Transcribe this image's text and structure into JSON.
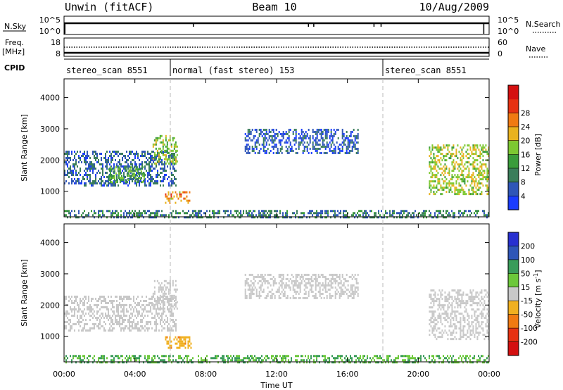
{
  "header": {
    "station": "Unwin (fitACF)",
    "beam": "Beam 10",
    "date": "10/Aug/2009"
  },
  "nsky_panel": {
    "left_label": "N.Sky",
    "left_ticks": [
      "10^5",
      "10^0"
    ],
    "right_ticks": [
      "10^5",
      "10^0"
    ],
    "right_label": "N.Search"
  },
  "freq_panel": {
    "label_line1": "Freq.",
    "label_line2": "[MHz]",
    "left_ticks": [
      "18",
      "8"
    ],
    "right_ticks": [
      "60",
      "0"
    ],
    "right_label": "Nave"
  },
  "cpid": {
    "label": "CPID",
    "segments": [
      {
        "name": "stereo_scan 8551",
        "start_hr": 0,
        "end_hr": 6
      },
      {
        "name": "normal (fast stereo) 153",
        "start_hr": 6,
        "end_hr": 18
      },
      {
        "name": "stereo_scan 8551",
        "start_hr": 18,
        "end_hr": 24
      }
    ]
  },
  "chart_data": [
    {
      "type": "heatmap",
      "panel": "power",
      "ylabel": "Slant Range [km]",
      "ylim": [
        180,
        4600
      ],
      "yticks": [
        "1000",
        "2000",
        "3000",
        "4000"
      ],
      "xlim": [
        0,
        24
      ],
      "colorbar": {
        "title": "Power [dB]",
        "range": [
          0,
          30
        ],
        "ticks": [
          "4",
          "8",
          "12",
          "16",
          "20",
          "24",
          "28"
        ],
        "colors": [
          "#1a3cff",
          "#2f56b8",
          "#3a7d5a",
          "#3a9c3a",
          "#7dc832",
          "#e8b21e",
          "#f07a12",
          "#e63212",
          "#d41010"
        ]
      },
      "echo_regions": [
        {
          "t": [
            0.0,
            6.3
          ],
          "range_km": [
            1200,
            2300
          ],
          "power_db": 6
        },
        {
          "t": [
            2.5,
            4.5
          ],
          "range_km": [
            1300,
            1800
          ],
          "power_db": 12
        },
        {
          "t": [
            5.0,
            6.4
          ],
          "range_km": [
            1900,
            2800
          ],
          "power_db": 14
        },
        {
          "t": [
            5.7,
            7.2
          ],
          "range_km": [
            650,
            1000
          ],
          "power_db": 20
        },
        {
          "t": [
            10.2,
            16.6
          ],
          "range_km": [
            2200,
            3000
          ],
          "power_db": 5
        },
        {
          "t": [
            20.6,
            24.0
          ],
          "range_km": [
            900,
            2500
          ],
          "power_db": 16
        },
        {
          "t": [
            0.0,
            24.0
          ],
          "range_km": [
            180,
            400
          ],
          "power_db": 8
        }
      ]
    },
    {
      "type": "heatmap",
      "panel": "velocity",
      "ylabel": "Slant Range [km]",
      "ylim": [
        180,
        4600
      ],
      "yticks": [
        "1000",
        "2000",
        "3000",
        "4000"
      ],
      "xlim": [
        0,
        24
      ],
      "colorbar": {
        "title": "Velocity [m s",
        "title_sup": "-1",
        "title_end": "]",
        "ticks": [
          "200",
          "100",
          "50",
          "15",
          "-15",
          "-50",
          "-100",
          "-200"
        ],
        "colors": [
          "#2830d0",
          "#2f56b8",
          "#3a9c5a",
          "#6cc83a",
          "#c8c8c8",
          "#f0b020",
          "#f07a12",
          "#e63212",
          "#d41010"
        ]
      },
      "echo_regions": [
        {
          "t": [
            0.0,
            6.3
          ],
          "range_km": [
            1200,
            2300
          ],
          "velocity": 0
        },
        {
          "t": [
            5.0,
            6.4
          ],
          "range_km": [
            1900,
            2800
          ],
          "velocity": 0
        },
        {
          "t": [
            5.7,
            7.2
          ],
          "range_km": [
            650,
            1000
          ],
          "velocity": -40
        },
        {
          "t": [
            10.2,
            16.6
          ],
          "range_km": [
            2200,
            3000
          ],
          "velocity": 0
        },
        {
          "t": [
            20.6,
            24.0
          ],
          "range_km": [
            900,
            2500
          ],
          "velocity": 0
        },
        {
          "t": [
            0.0,
            24.0
          ],
          "range_km": [
            180,
            400
          ],
          "velocity": 30
        }
      ]
    }
  ],
  "xaxis": {
    "label": "Time UT",
    "ticks": [
      "00:00",
      "04:00",
      "08:00",
      "12:00",
      "16:00",
      "20:00",
      "00:00"
    ],
    "tick_hours": [
      0,
      4,
      8,
      12,
      16,
      20,
      24
    ]
  }
}
